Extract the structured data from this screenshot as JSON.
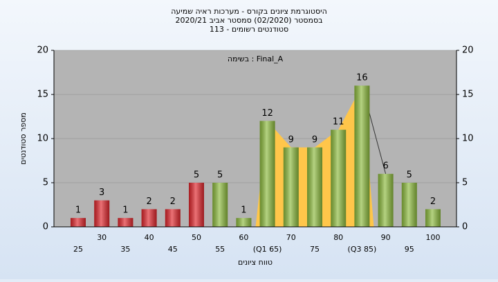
{
  "chart_data": {
    "type": "bar",
    "title": [
      "היסטוגרמת ציונים בקורס - מערכות ראיה שמיעה",
      "בסמסטר  (02/2020)  סמסטר אביב 2020/21",
      "סטודנטים רשומים - 113"
    ],
    "annotation": "בשימה : Final_A",
    "x_label": "טווח ציונים",
    "y_label": "מספר סטודנטים",
    "categories": [
      "25",
      "30",
      "35",
      "40",
      "45",
      "50",
      "55",
      "60",
      "(Q1 65)",
      "70",
      "75",
      "80",
      "(Q3 85)",
      "90",
      "95",
      "100"
    ],
    "values": [
      1,
      3,
      1,
      2,
      2,
      5,
      5,
      1,
      12,
      9,
      9,
      11,
      16,
      6,
      5,
      2
    ],
    "colors": [
      "#e0262c",
      "#e0262c",
      "#e0262c",
      "#e0262c",
      "#e0262c",
      "#e0262c",
      "#8dbb3e",
      "#8dbb3e",
      "#8dbb3e",
      "#8dbb3e",
      "#8dbb3e",
      "#8dbb3e",
      "#8dbb3e",
      "#8dbb3e",
      "#8dbb3e",
      "#8dbb3e"
    ],
    "ylim": [
      0,
      20
    ],
    "yticks": [
      0,
      5,
      10,
      15,
      20
    ],
    "y2lim": [
      0,
      20
    ],
    "y2ticks": [
      0,
      5,
      10,
      15,
      20
    ],
    "grid": true
  }
}
